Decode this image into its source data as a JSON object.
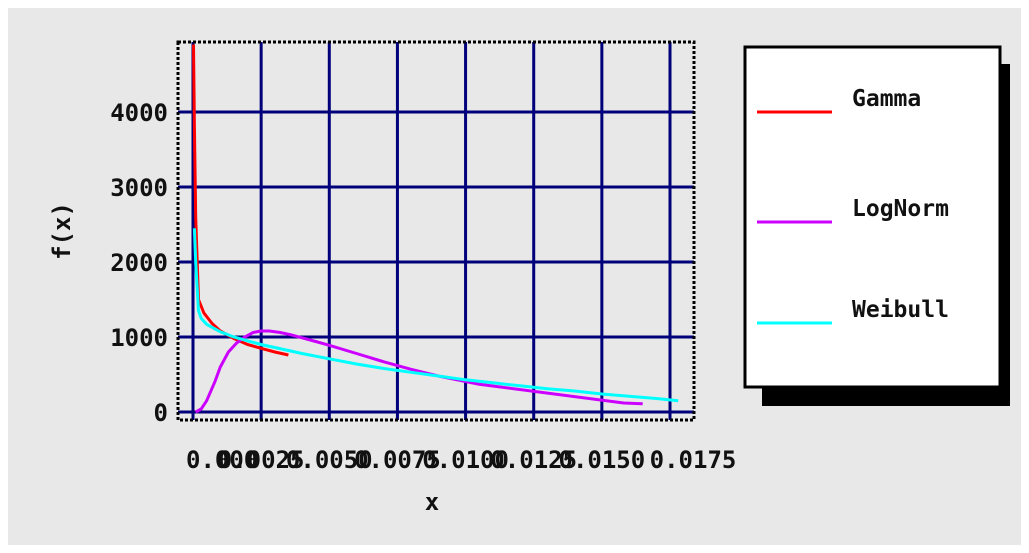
{
  "chart_data": {
    "type": "line",
    "xlabel": "x",
    "ylabel": "f(x)",
    "xlim": [
      0,
      0.0185
    ],
    "ylim": [
      0,
      5000
    ],
    "x_ticks": [
      0,
      0.0025,
      0.005,
      0.0075,
      0.01,
      0.0125,
      0.015,
      0.0175
    ],
    "x_tick_labels": [
      "0.000",
      "0.0025",
      "0.0050",
      "0.0075",
      "0.0100",
      "0.0125",
      "0.0150",
      "0.0175"
    ],
    "y_ticks": [
      0,
      1000,
      2000,
      3000,
      4000
    ],
    "y_tick_labels": [
      "0",
      "1000",
      "2000",
      "3000",
      "4000"
    ],
    "grid": true,
    "legend_position": "right",
    "series": [
      {
        "name": "Gamma",
        "color": "#ff0000",
        "x": [
          2e-05,
          5e-05,
          0.0001,
          0.0002,
          0.0004,
          0.0007,
          0.001,
          0.0015,
          0.002,
          0.0025,
          0.003,
          0.0035
        ],
        "y": [
          4900,
          3800,
          2600,
          1500,
          1320,
          1180,
          1080,
          980,
          900,
          850,
          800,
          760
        ]
      },
      {
        "name": "LogNorm",
        "color": "#cc00ff",
        "x": [
          0.0001,
          0.0003,
          0.0005,
          0.0008,
          0.001,
          0.0013,
          0.0016,
          0.0019,
          0.0022,
          0.0025,
          0.0028,
          0.0032,
          0.0036,
          0.004,
          0.0045,
          0.005,
          0.006,
          0.007,
          0.008,
          0.009,
          0.0105,
          0.0158,
          0.0165
        ],
        "y": [
          0,
          40,
          150,
          400,
          600,
          800,
          920,
          1000,
          1060,
          1080,
          1080,
          1060,
          1030,
          990,
          940,
          890,
          780,
          670,
          570,
          480,
          370,
          120,
          110
        ]
      },
      {
        "name": "Weibull",
        "color": "#00ffff",
        "x": [
          5e-05,
          0.0001,
          0.0002,
          0.0003,
          0.0005,
          0.0008,
          0.001,
          0.0015,
          0.002,
          0.0025,
          0.003,
          0.004,
          0.005,
          0.006,
          0.007,
          0.008,
          0.009,
          0.01,
          0.011,
          0.012,
          0.013,
          0.014,
          0.015,
          0.016,
          0.017,
          0.0178
        ],
        "y": [
          2450,
          2000,
          1350,
          1250,
          1170,
          1110,
          1070,
          1000,
          950,
          900,
          860,
          780,
          710,
          640,
          580,
          530,
          480,
          430,
          390,
          350,
          310,
          280,
          240,
          210,
          180,
          150
        ]
      }
    ]
  }
}
